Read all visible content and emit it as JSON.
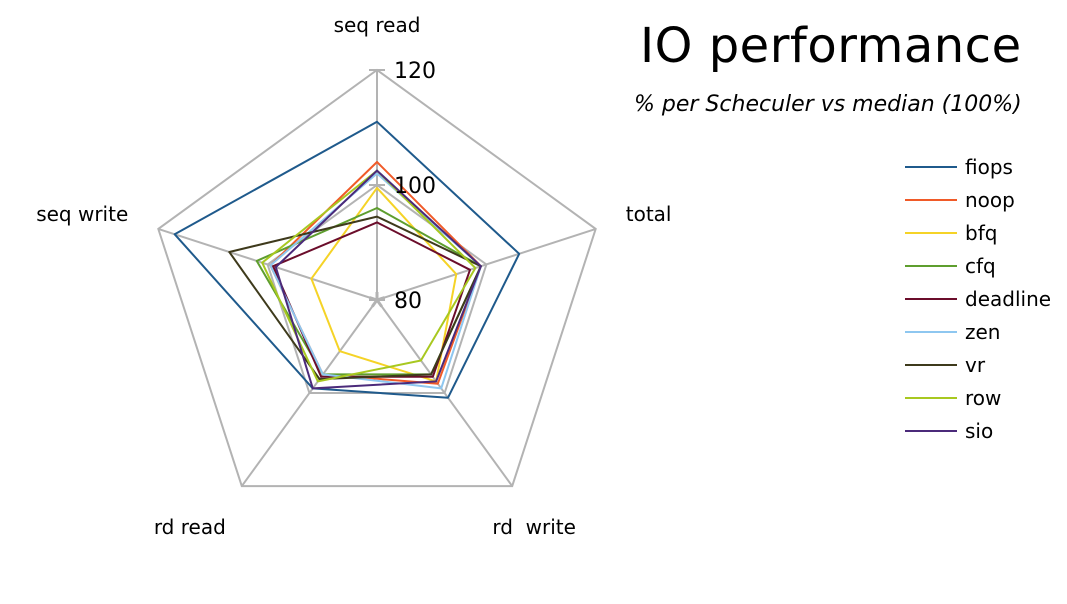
{
  "chart_data": {
    "type": "radar",
    "title": "IO performance",
    "subtitle": "% per Scheculer vs median (100%)",
    "axes": [
      "seq read",
      "total",
      "rd  write",
      "rd read",
      "seq write"
    ],
    "radial_ticks": [
      80,
      100,
      120
    ],
    "range": [
      80,
      120
    ],
    "legend_position": "right",
    "series": [
      {
        "name": "fiops",
        "color": "#1f5a8c",
        "values": [
          111,
          106,
          101,
          99,
          117
        ]
      },
      {
        "name": "noop",
        "color": "#f05a28",
        "values": [
          104,
          99,
          98,
          96,
          99.5
        ]
      },
      {
        "name": "bfq",
        "color": "#f5d327",
        "values": [
          99.5,
          94.5,
          97.5,
          91,
          92
        ]
      },
      {
        "name": "cfq",
        "color": "#5e9e2e",
        "values": [
          96,
          99,
          96,
          96,
          102
        ]
      },
      {
        "name": "deadline",
        "color": "#6b0d2b",
        "values": [
          93.5,
          97,
          96.5,
          96.5,
          99
        ]
      },
      {
        "name": "zen",
        "color": "#8ec7f0",
        "values": [
          102,
          99,
          99,
          96,
          99.5
        ]
      },
      {
        "name": "vr",
        "color": "#3e3a1c",
        "values": [
          94.5,
          99,
          96,
          97,
          107
        ]
      },
      {
        "name": "row",
        "color": "#a8c820",
        "values": [
          102.5,
          98,
          93,
          97.5,
          101
        ]
      },
      {
        "name": "sio",
        "color": "#4b2a7a",
        "values": [
          102.5,
          99,
          97.5,
          99,
          98.5
        ]
      }
    ]
  }
}
